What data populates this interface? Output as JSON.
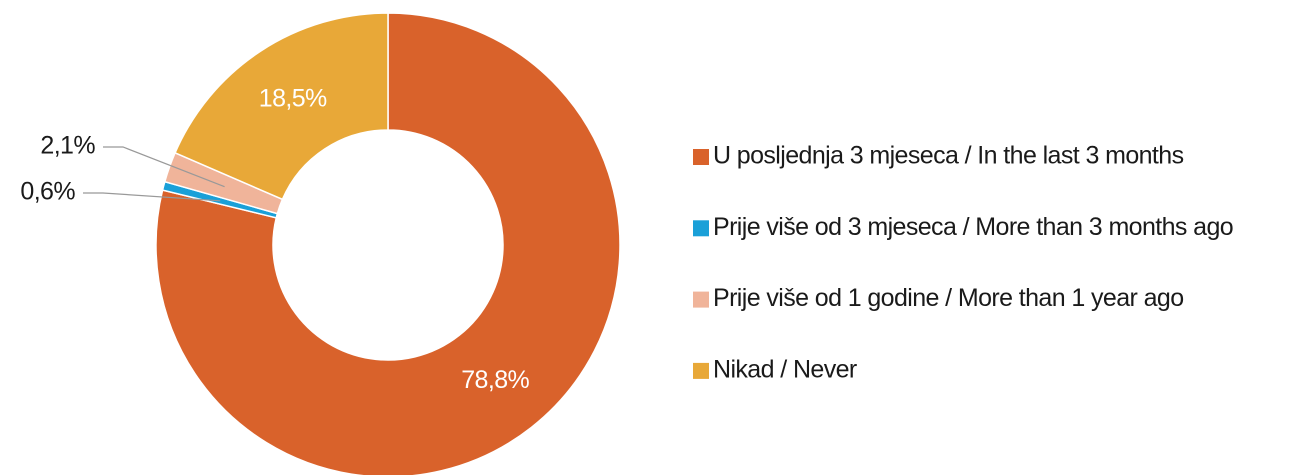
{
  "chart_data": {
    "type": "donut",
    "categories": [
      "U posljednja 3 mjeseca / In the last 3 months",
      "Prije više od 3 mjeseca / More than 3 months ago",
      "Prije više od 1 godine / More than 1 year ago",
      "Nikad / Never"
    ],
    "values": [
      78.8,
      0.6,
      2.1,
      18.5
    ],
    "value_labels": [
      "78,8%",
      "0,6%",
      "2,1%",
      "18,5%"
    ],
    "colors": [
      "#d9622b",
      "#1aa0d8",
      "#f0b49a",
      "#e8a838"
    ],
    "legend": "right"
  }
}
